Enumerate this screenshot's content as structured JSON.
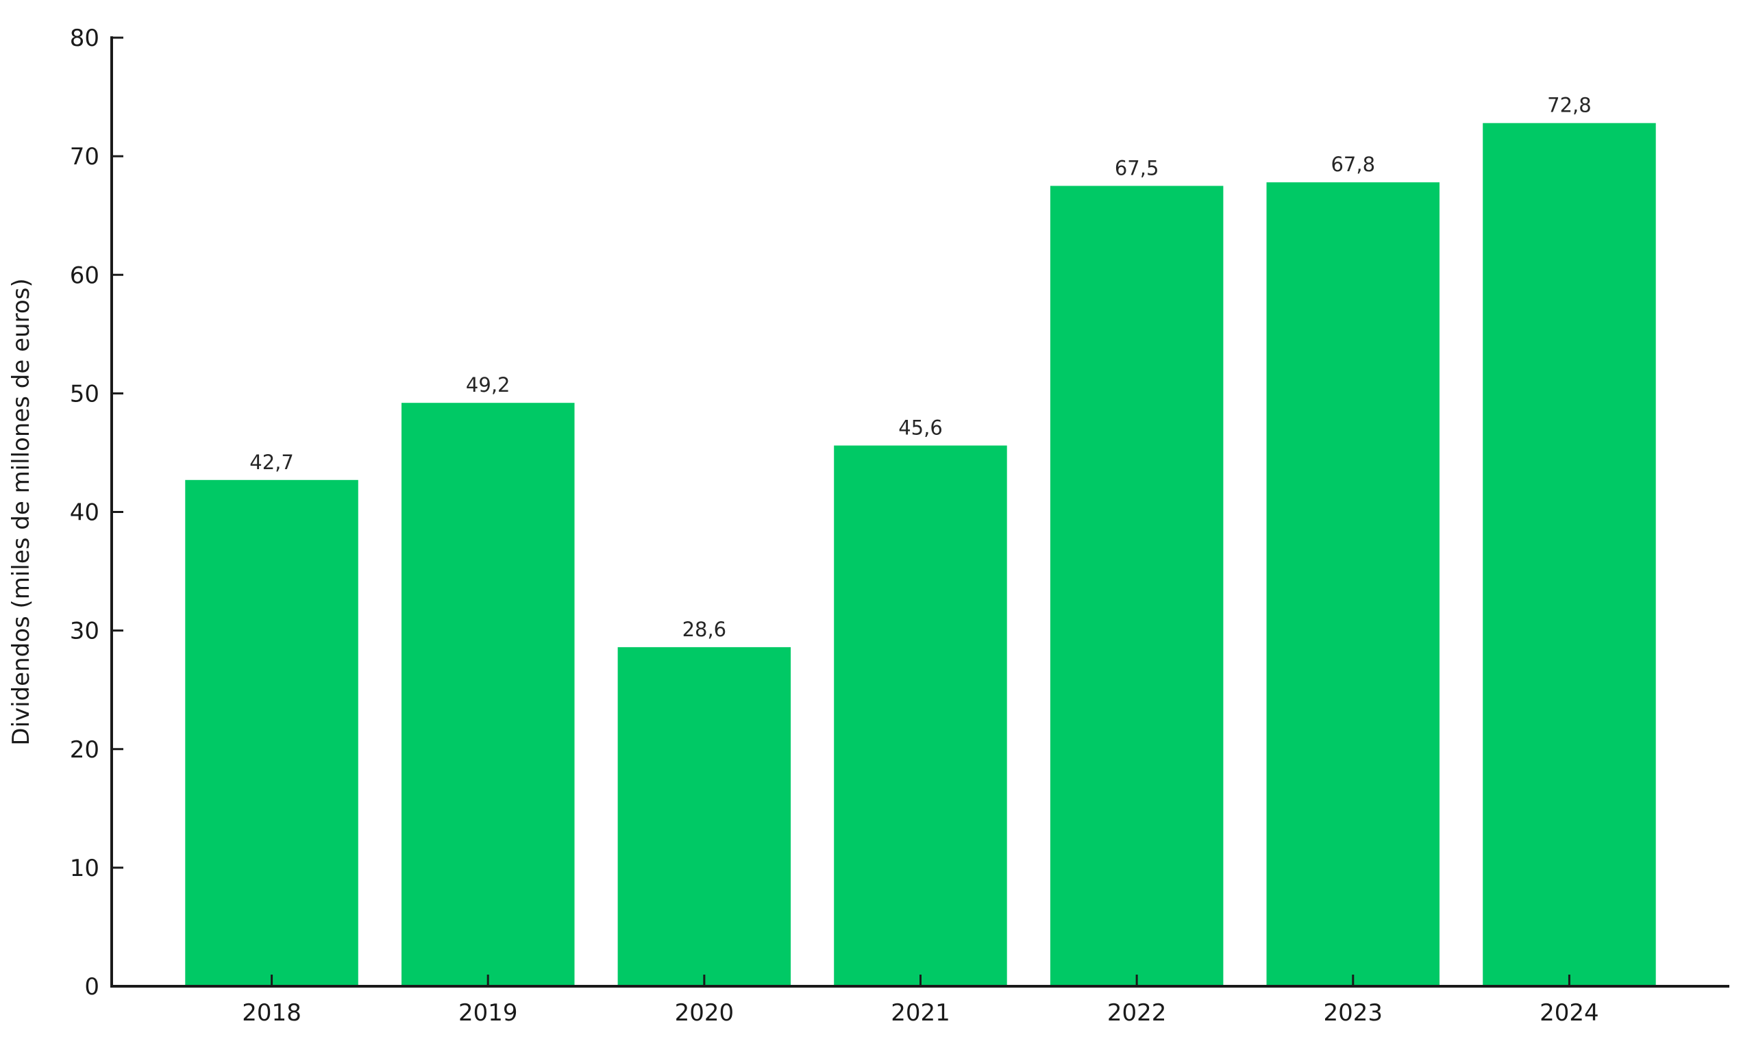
{
  "chart_data": {
    "type": "bar",
    "title": "",
    "categories": [
      "2018",
      "2019",
      "2020",
      "2021",
      "2022",
      "2023",
      "2024"
    ],
    "values": [
      42.7,
      49.2,
      28.6,
      45.6,
      67.5,
      67.8,
      72.8
    ],
    "value_labels": [
      "42,7",
      "49,2",
      "28,6",
      "45,6",
      "67,5",
      "67,8",
      "72,8"
    ],
    "xlabel": "",
    "ylabel": "Dividendos (miles de millones de euros)",
    "ylim": [
      0,
      80
    ],
    "yticks": [
      0,
      10,
      20,
      30,
      40,
      50,
      60,
      70,
      80
    ],
    "ytick_labels": [
      "0",
      "10",
      "20",
      "30",
      "40",
      "50",
      "60",
      "70",
      "80"
    ],
    "grid": false,
    "legend": null,
    "colors": {
      "bar": "#00C965",
      "axis": "#1a1a1a",
      "tick_label": "#1a1a1a",
      "value_label": "#262626",
      "background": "#ffffff"
    }
  }
}
